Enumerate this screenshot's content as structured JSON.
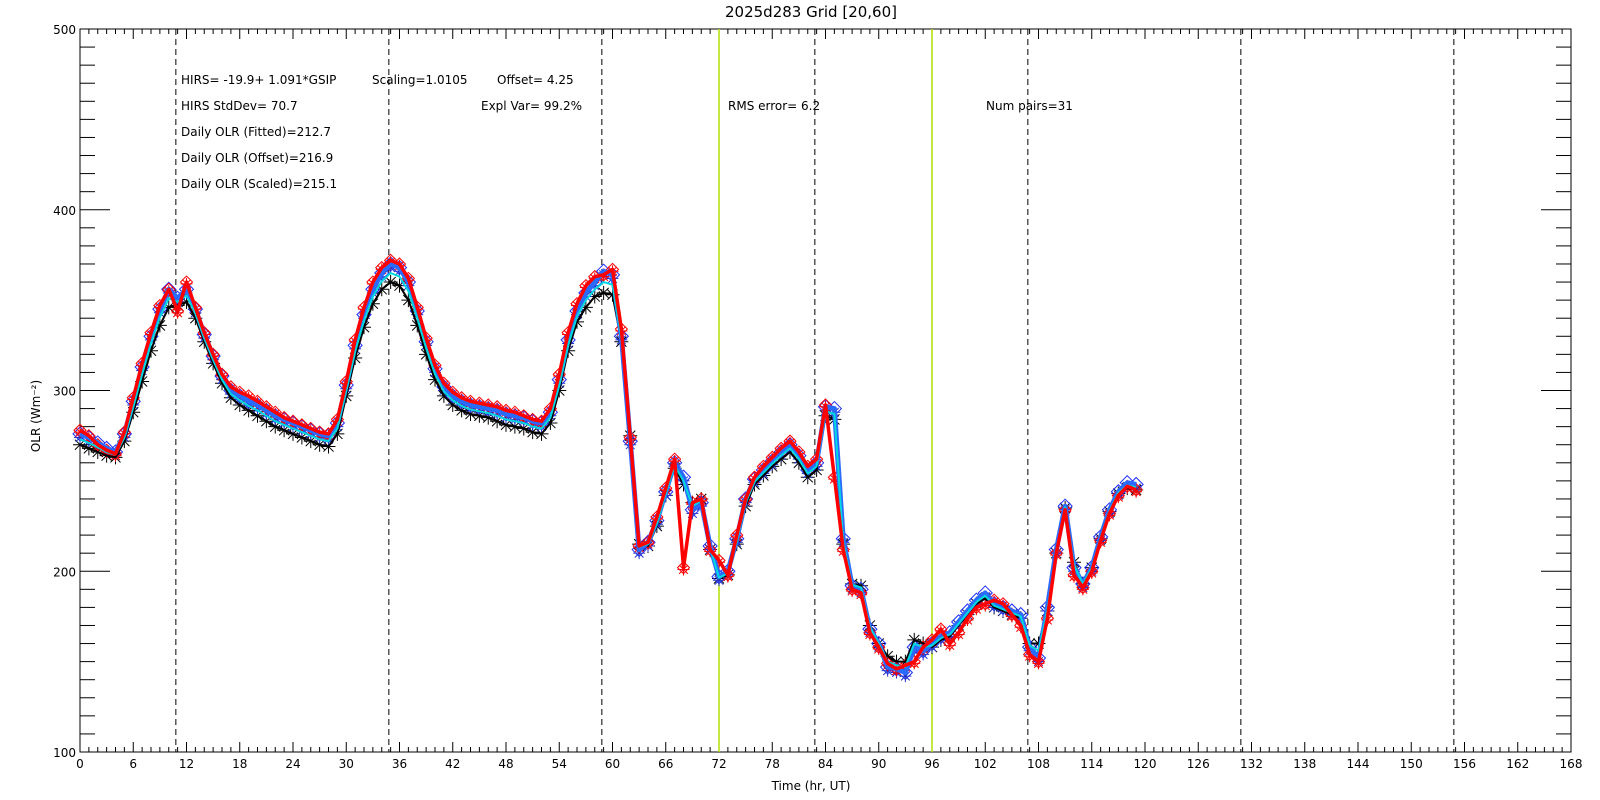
{
  "chart_data": {
    "type": "line",
    "title": "2025d283 Grid [20,60]",
    "xlabel": "Time (hr, UT)",
    "ylabel": "OLR (Wm⁻²)",
    "xlim": [
      0,
      168
    ],
    "ylim": [
      100,
      500
    ],
    "xticks": [
      0,
      6,
      12,
      18,
      24,
      30,
      36,
      42,
      48,
      54,
      60,
      66,
      72,
      78,
      84,
      90,
      96,
      102,
      108,
      114,
      120,
      126,
      132,
      138,
      144,
      150,
      156,
      162,
      168
    ],
    "yticks": [
      100,
      200,
      300,
      400,
      500
    ],
    "dashed_vlines_x": [
      10.8,
      34.8,
      58.8,
      82.8,
      106.8,
      130.8,
      154.8
    ],
    "green_vlines_x": [
      72,
      96
    ],
    "grid": false,
    "annotations": [
      "HIRS=  -19.9+  1.091*GSIP",
      "Scaling=1.0105",
      "Offset=  4.25",
      "HIRS StdDev= 70.7",
      "Expl Var= 99.2%",
      "RMS error=  6.2",
      "Num pairs=31",
      "Daily OLR (Fitted)=212.7",
      "Daily OLR (Offset)=216.9",
      "Daily OLR (Scaled)=215.1"
    ],
    "x": [
      0,
      1,
      2,
      3,
      4,
      5,
      6,
      7,
      8,
      9,
      10,
      11,
      12,
      13,
      14,
      15,
      16,
      17,
      18,
      19,
      20,
      21,
      22,
      23,
      24,
      25,
      26,
      27,
      28,
      29,
      30,
      31,
      32,
      33,
      34,
      35,
      36,
      37,
      38,
      39,
      40,
      41,
      42,
      43,
      44,
      45,
      46,
      47,
      48,
      49,
      50,
      51,
      52,
      53,
      54,
      55,
      56,
      57,
      58,
      59,
      60,
      61,
      62,
      63,
      64,
      65,
      66,
      67,
      68,
      69,
      70,
      71,
      72,
      73,
      74,
      75,
      76,
      77,
      78,
      79,
      80,
      81,
      82,
      83,
      84,
      85,
      86,
      87,
      88,
      89,
      90,
      91,
      92,
      93,
      94,
      95,
      96,
      97,
      98,
      99,
      100,
      101,
      102,
      103,
      104,
      105,
      106,
      107,
      108,
      109,
      110,
      111,
      112,
      113,
      114,
      115,
      116,
      117,
      118,
      119
    ],
    "series": [
      {
        "color": "#000000",
        "marker": "asterisk",
        "values": [
          270,
          268,
          266,
          264,
          263,
          272,
          288,
          305,
          322,
          336,
          346,
          347,
          349,
          340,
          327,
          315,
          304,
          296,
          292,
          289,
          286,
          283,
          280,
          278,
          276,
          274,
          272,
          270,
          269,
          276,
          297,
          318,
          335,
          348,
          356,
          360,
          358,
          350,
          336,
          320,
          306,
          297,
          292,
          289,
          287,
          286,
          285,
          283,
          281,
          280,
          279,
          277,
          276,
          282,
          300,
          322,
          338,
          346,
          352,
          354,
          353,
          327,
          275,
          215,
          214,
          225,
          242,
          257,
          248,
          238,
          240,
          212,
          196,
          198,
          215,
          236,
          248,
          253,
          258,
          262,
          266,
          260,
          252,
          256,
          286,
          284,
          215,
          193,
          192,
          170,
          160,
          153,
          150,
          150,
          162,
          160,
          158,
          162,
          164,
          170,
          176,
          182,
          185,
          180,
          178,
          176,
          174,
          160,
          160,
          178,
          210,
          235,
          205,
          193,
          202,
          218,
          233,
          243,
          246,
          245
        ]
      },
      {
        "color": "#1a2bff",
        "marker": "diamond",
        "values": [
          276,
          274,
          271,
          268,
          266,
          276,
          294,
          313,
          330,
          345,
          356,
          351,
          356,
          345,
          331,
          319,
          308,
          300,
          297,
          294,
          292,
          289,
          286,
          284,
          282,
          280,
          278,
          276,
          275,
          282,
          303,
          325,
          342,
          356,
          365,
          370,
          368,
          360,
          344,
          327,
          312,
          302,
          297,
          294,
          292,
          291,
          290,
          289,
          287,
          286,
          285,
          283,
          282,
          288,
          306,
          328,
          344,
          354,
          360,
          366,
          364,
          330,
          272,
          212,
          216,
          228,
          244,
          260,
          252,
          234,
          238,
          214,
          197,
          200,
          218,
          240,
          251,
          256,
          261,
          266,
          270,
          264,
          256,
          260,
          291,
          290,
          218,
          192,
          190,
          168,
          160,
          147,
          146,
          144,
          158,
          156,
          160,
          164,
          166,
          172,
          178,
          184,
          188,
          182,
          180,
          178,
          176,
          158,
          152,
          180,
          212,
          236,
          202,
          193,
          202,
          219,
          234,
          244,
          249,
          248
        ]
      },
      {
        "color": "#ff0000",
        "marker": "diamond",
        "values": [
          278,
          275,
          270,
          267,
          265,
          277,
          296,
          315,
          332,
          347,
          356,
          344,
          360,
          346,
          332,
          320,
          309,
          302,
          299,
          297,
          294,
          291,
          288,
          285,
          283,
          281,
          279,
          277,
          276,
          284,
          305,
          328,
          346,
          360,
          368,
          372,
          370,
          362,
          346,
          329,
          314,
          304,
          299,
          296,
          294,
          293,
          292,
          291,
          289,
          288,
          286,
          284,
          283,
          290,
          309,
          332,
          348,
          358,
          363,
          364,
          367,
          334,
          274,
          214,
          216,
          230,
          246,
          262,
          202,
          238,
          240,
          212,
          206,
          198,
          220,
          240,
          252,
          258,
          263,
          268,
          272,
          266,
          258,
          262,
          292,
          252,
          212,
          190,
          188,
          166,
          158,
          149,
          146,
          148,
          150,
          158,
          162,
          168,
          160,
          166,
          174,
          180,
          182,
          184,
          182,
          176,
          170,
          154,
          150,
          174,
          210,
          234,
          198,
          191,
          200,
          217,
          232,
          242,
          247,
          245
        ]
      }
    ]
  }
}
